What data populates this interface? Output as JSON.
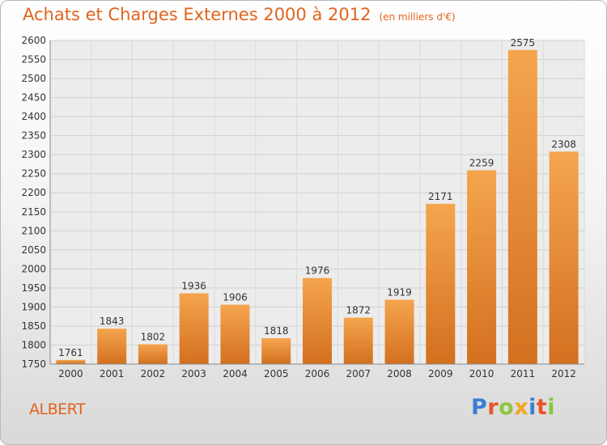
{
  "title": "Achats et Charges Externes 2000 à 2012",
  "unit": "(en milliers d'€)",
  "commune": "ALBERT",
  "logo": {
    "text": "Proxiti",
    "colors": [
      "#3a7fd5",
      "#e8542a",
      "#8cc63f",
      "#f2a81d",
      "#3a7fd5",
      "#e8542a",
      "#8cc63f"
    ]
  },
  "colors": {
    "bar_top": "#f5a54e",
    "bar_bottom": "#d3701f",
    "title": "#e0641e"
  },
  "chart_data": {
    "type": "bar",
    "categories": [
      "2000",
      "2001",
      "2002",
      "2003",
      "2004",
      "2005",
      "2006",
      "2007",
      "2008",
      "2009",
      "2010",
      "2011",
      "2012"
    ],
    "values": [
      1761,
      1843,
      1802,
      1936,
      1906,
      1818,
      1976,
      1872,
      1919,
      2171,
      2259,
      2575,
      2308
    ],
    "ylim": [
      1750,
      2600
    ],
    "yticks": [
      1750,
      1800,
      1850,
      1900,
      1950,
      2000,
      2050,
      2100,
      2150,
      2200,
      2250,
      2300,
      2350,
      2400,
      2450,
      2500,
      2550,
      2600
    ],
    "grid": true
  }
}
